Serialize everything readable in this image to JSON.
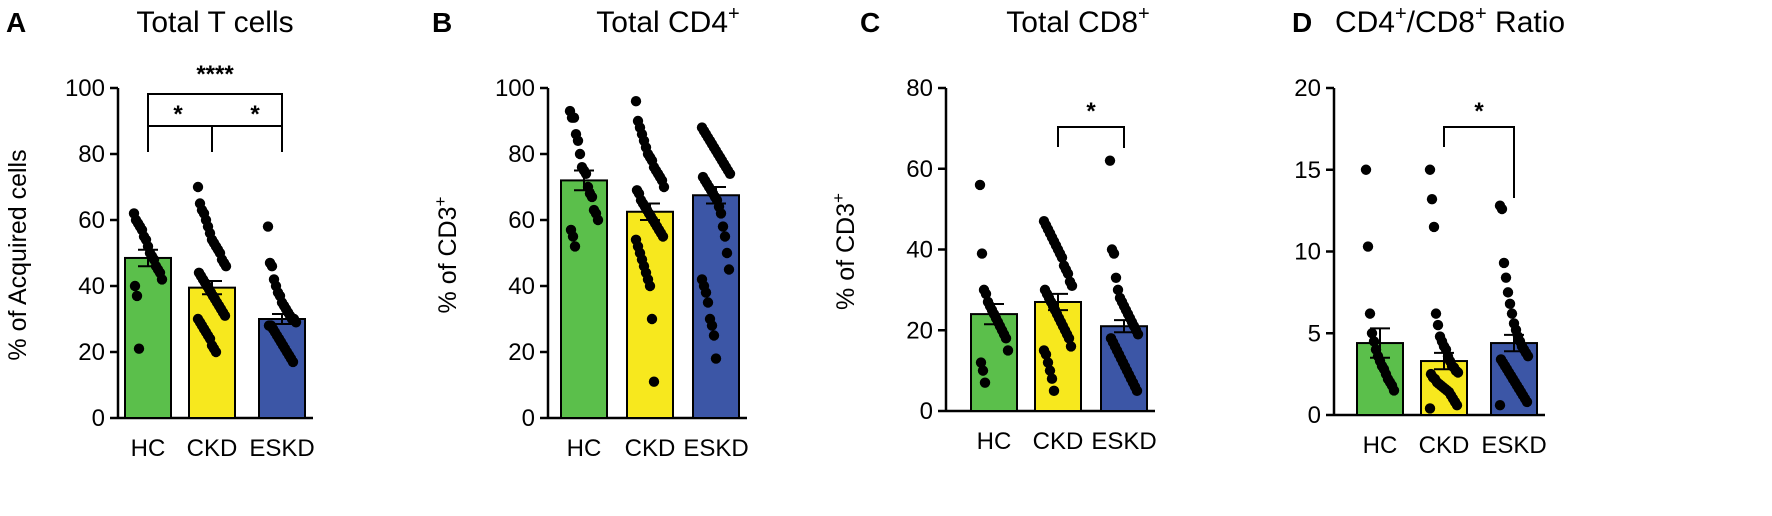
{
  "colors": {
    "HC": "#5bbf4b",
    "CKD": "#f7e81e",
    "ESKD": "#3c56a6"
  },
  "chart_data": [
    {
      "panel": "A",
      "type": "bar",
      "title": "Total T cells",
      "ylabel": "% of Acquired cells",
      "categories": [
        "HC",
        "CKD",
        "ESKD"
      ],
      "values": [
        48.5,
        39.5,
        30.0
      ],
      "sem": [
        2.5,
        2.0,
        1.5
      ],
      "ylim": [
        0,
        100
      ],
      "yticks": [
        0,
        20,
        40,
        60,
        80,
        100
      ],
      "points": [
        [
          62,
          60,
          59,
          58,
          57,
          55,
          54,
          52,
          50,
          49,
          48,
          46,
          45,
          44,
          42,
          40,
          37,
          21
        ],
        [
          70,
          65,
          63,
          62,
          60,
          58,
          56,
          54,
          53,
          52,
          51,
          50,
          48,
          47,
          46,
          44,
          43,
          42,
          41,
          40,
          39,
          38,
          37,
          36,
          35,
          34,
          33,
          32,
          31,
          30,
          29,
          28,
          27,
          26,
          25,
          24,
          22,
          21,
          20
        ],
        [
          58,
          47,
          46,
          42,
          40,
          38,
          37,
          35,
          34,
          33,
          32,
          31,
          30,
          30,
          29,
          28,
          28,
          27,
          26,
          25,
          24,
          23,
          22,
          21,
          20,
          19,
          18,
          17
        ]
      ],
      "significance": [
        {
          "from": 0,
          "to": 2,
          "label": "****"
        },
        {
          "from": 0,
          "to": 1,
          "label": "*"
        },
        {
          "from": 1,
          "to": 2,
          "label": "*"
        }
      ]
    },
    {
      "panel": "B",
      "type": "bar",
      "title": "Total CD4",
      "title_sup": "+",
      "ylabel": "% of CD3",
      "ylabel_sup": "+",
      "categories": [
        "HC",
        "CKD",
        "ESKD"
      ],
      "values": [
        72.0,
        62.5,
        67.5
      ],
      "sem": [
        3.0,
        2.5,
        2.5
      ],
      "ylim": [
        0,
        100
      ],
      "yticks": [
        0,
        20,
        40,
        60,
        80,
        100
      ],
      "points": [
        [
          93,
          91,
          91,
          86,
          84,
          80,
          76,
          75,
          74,
          70,
          68,
          67,
          63,
          62,
          60,
          57,
          55,
          52
        ],
        [
          96,
          90,
          88,
          86,
          84,
          82,
          80,
          79,
          78,
          76,
          75,
          74,
          73,
          72,
          70,
          69,
          68,
          66,
          65,
          64,
          63,
          62,
          61,
          60,
          59,
          58,
          57,
          56,
          55,
          54,
          52,
          50,
          48,
          46,
          44,
          42,
          40,
          30,
          11
        ],
        [
          88,
          87,
          86,
          85,
          84,
          83,
          82,
          81,
          80,
          79,
          78,
          77,
          76,
          75,
          74,
          73,
          72,
          71,
          70,
          69,
          68,
          67,
          66,
          64,
          62,
          58,
          55,
          50,
          45,
          42,
          40,
          38,
          35,
          30,
          28,
          25,
          18
        ]
      ],
      "significance": []
    },
    {
      "panel": "C",
      "type": "bar",
      "title": "Total CD8",
      "title_sup": "+",
      "ylabel": "% of CD3",
      "ylabel_sup": "+",
      "categories": [
        "HC",
        "CKD",
        "ESKD"
      ],
      "values": [
        24.0,
        27.0,
        21.0
      ],
      "sem": [
        2.5,
        2.0,
        1.5
      ],
      "ylim": [
        0,
        80
      ],
      "yticks": [
        0,
        20,
        40,
        60,
        80
      ],
      "points": [
        [
          56,
          39,
          30,
          29,
          27,
          26,
          25,
          24,
          23,
          22,
          21,
          20,
          19,
          18,
          15,
          12,
          10,
          7
        ],
        [
          47,
          46,
          45,
          44,
          43,
          42,
          41,
          40,
          39,
          38,
          36,
          35,
          34,
          32,
          31,
          30,
          29,
          28,
          27,
          26,
          25,
          24,
          23,
          22,
          21,
          20,
          19,
          18,
          16,
          15,
          14,
          12,
          10,
          8,
          5
        ],
        [
          62,
          40,
          39,
          33,
          30,
          28,
          27,
          26,
          25,
          24,
          23,
          22,
          21,
          20,
          19,
          18,
          17,
          16,
          15,
          14,
          13,
          12,
          11,
          10,
          9,
          8,
          7,
          6,
          5
        ]
      ],
      "significance": [
        {
          "from": 1,
          "to": 2,
          "label": "*"
        }
      ]
    },
    {
      "panel": "D",
      "type": "bar",
      "title": "CD4",
      "title_sup": "+",
      "title_mid": "/CD8",
      "title_sup2": "+",
      "title_end": " Ratio",
      "ylabel": "",
      "categories": [
        "HC",
        "CKD",
        "ESKD"
      ],
      "values": [
        4.4,
        3.3,
        4.4
      ],
      "sem": [
        0.9,
        0.5,
        0.5
      ],
      "ylim": [
        0,
        20
      ],
      "yticks": [
        0,
        5,
        10,
        15,
        20
      ],
      "points": [
        [
          15.0,
          10.3,
          6.2,
          5.0,
          4.5,
          4.0,
          3.6,
          3.3,
          3.0,
          2.8,
          2.5,
          2.2,
          2.0,
          1.8,
          1.5
        ],
        [
          15.0,
          13.2,
          11.5,
          6.2,
          5.5,
          4.8,
          4.5,
          4.2,
          4.0,
          3.6,
          3.3,
          3.0,
          2.9,
          2.7,
          2.6,
          2.5,
          2.3,
          2.2,
          2.0,
          1.9,
          1.8,
          1.7,
          1.6,
          1.5,
          1.4,
          1.2,
          1.0,
          0.8,
          0.6,
          0.4
        ],
        [
          12.8,
          12.6,
          9.3,
          8.4,
          7.5,
          6.8,
          6.2,
          5.6,
          5.2,
          4.8,
          4.5,
          4.2,
          4.0,
          3.8,
          3.6,
          3.4,
          3.2,
          3.0,
          2.8,
          2.6,
          2.4,
          2.2,
          2.0,
          1.8,
          1.6,
          1.4,
          1.2,
          1.0,
          0.8,
          0.6
        ]
      ],
      "significance": [
        {
          "from": 1,
          "to": 2,
          "label": "*"
        }
      ]
    }
  ]
}
